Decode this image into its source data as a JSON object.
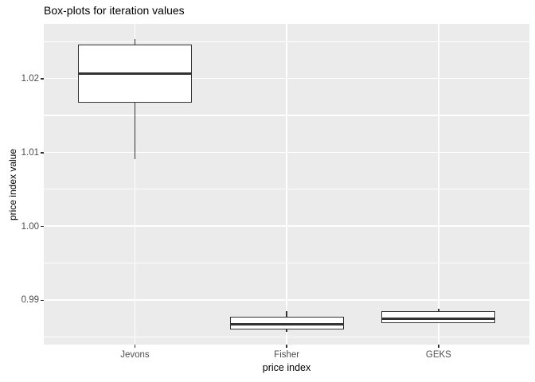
{
  "colors": {
    "page_bg": "#ffffff",
    "panel_bg": "#ebebeb",
    "grid": "#ffffff",
    "box_stroke": "#333333",
    "box_fill": "#ffffff",
    "tick_mark": "#333333",
    "tick_text": "#4d4d4d",
    "title_text": "#000000",
    "axis_title_text": "#000000"
  },
  "chart_data": {
    "type": "boxplot",
    "title": "Box-plots for iteration values",
    "xlabel": "price index",
    "ylabel": "price index value",
    "categories": [
      "Jevons",
      "Fisher",
      "GEKS"
    ],
    "series": [
      {
        "name": "Jevons",
        "whisker_low": 1.0091,
        "q1": 1.0167,
        "median": 1.0207,
        "q3": 1.0246,
        "whisker_high": 1.0253
      },
      {
        "name": "Fisher",
        "whisker_low": 0.9857,
        "q1": 0.986,
        "median": 0.9867,
        "q3": 0.9877,
        "whisker_high": 0.9885
      },
      {
        "name": "GEKS",
        "whisker_low": 0.9869,
        "q1": 0.9869,
        "median": 0.9875,
        "q3": 0.9885,
        "whisker_high": 0.9888
      }
    ],
    "y_ticks": {
      "values": [
        0.99,
        1.0,
        1.01,
        1.02
      ],
      "labels": [
        "0.99",
        "1.00",
        "1.01",
        "1.02"
      ]
    },
    "y_minor_ticks": [
      0.985,
      0.995,
      1.005,
      1.015,
      1.025
    ],
    "ylim": [
      0.984,
      1.0274
    ],
    "x_band": {
      "inner_positions": [
        0.1875,
        0.5,
        0.8125
      ],
      "box_width_frac": 0.234375
    },
    "grid": "on",
    "legend": "none"
  }
}
